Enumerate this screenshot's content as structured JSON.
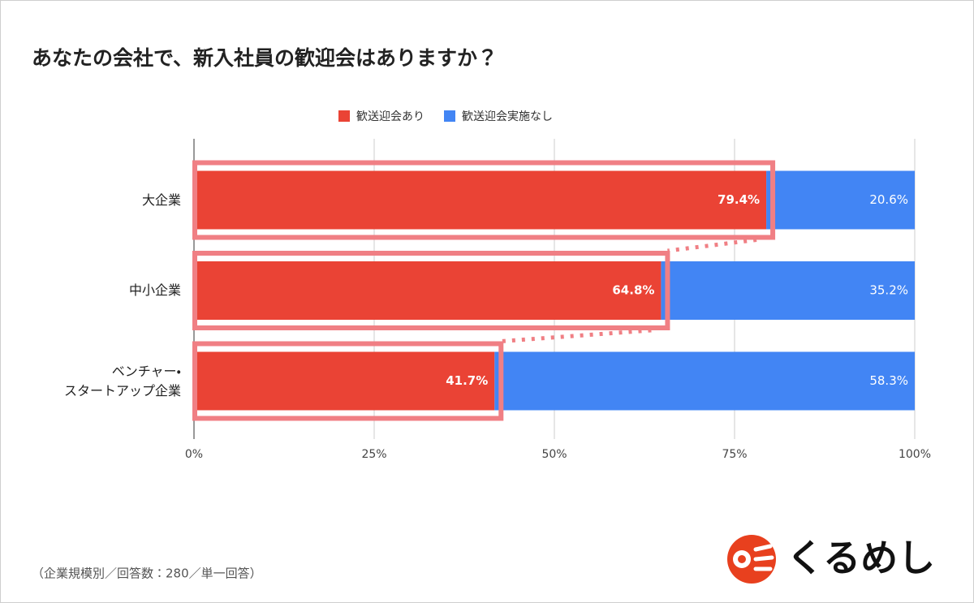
{
  "chart_data": {
    "type": "stacked_bar_horizontal",
    "title": "あなたの会社で、新入社員の歓迎会はありますか？",
    "categories": [
      "大企業",
      "中小企業",
      "ベンチャー・\nスタートアップ企業"
    ],
    "series": [
      {
        "name": "歓送迎会あり",
        "color": "#ea4335",
        "values": [
          79.4,
          64.8,
          41.7
        ],
        "value_labels": [
          "79.4%",
          "64.8%",
          "41.7%"
        ]
      },
      {
        "name": "歓送迎会実施なし",
        "color": "#4285f4",
        "values": [
          20.6,
          35.2,
          58.3
        ],
        "value_labels": [
          "20.6%",
          "35.2%",
          "58.3%"
        ]
      }
    ],
    "xlim": [
      0,
      100
    ],
    "xticks": [
      {
        "value": 0,
        "label": "0%"
      },
      {
        "value": 25,
        "label": "25%"
      },
      {
        "value": 50,
        "label": "50%"
      },
      {
        "value": 75,
        "label": "75%"
      },
      {
        "value": 100,
        "label": "100%"
      }
    ],
    "grid": true,
    "legend": "top",
    "highlight_color": "#f07f84",
    "note": "（企業規模別／回答数：280／単一回答）"
  },
  "logo": "くるめし"
}
